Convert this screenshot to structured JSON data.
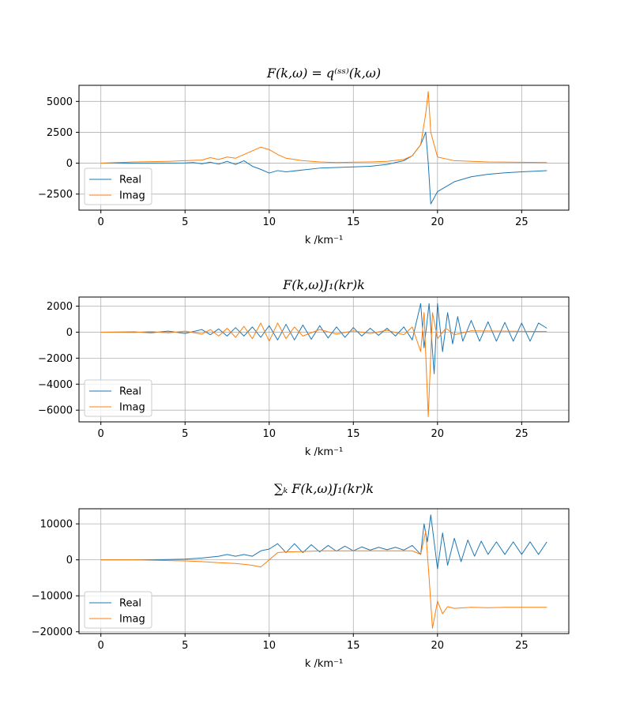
{
  "figure": {
    "width": 800,
    "height": 900
  },
  "chart_data": [
    {
      "type": "line",
      "title": "F(k,ω) = q⁽ˢˢ⁾(k,ω)",
      "xlabel": "k /km⁻¹",
      "ylabel": "",
      "xlim": [
        -1.3,
        27.8
      ],
      "ylim": [
        -3800,
        6300
      ],
      "xticks": [
        0,
        5,
        10,
        15,
        20,
        25
      ],
      "yticks": [
        -2500,
        0,
        2500,
        5000
      ],
      "grid": true,
      "legend": {
        "placement": "lower-left",
        "entries": [
          "Real",
          "Imag"
        ]
      },
      "series": [
        {
          "name": "Real",
          "color": "#1f77b4",
          "points": [
            [
              0,
              0
            ],
            [
              2,
              5
            ],
            [
              4,
              10
            ],
            [
              5,
              20
            ],
            [
              5.5,
              50
            ],
            [
              6,
              -50
            ],
            [
              6.5,
              80
            ],
            [
              7,
              -80
            ],
            [
              7.5,
              150
            ],
            [
              8,
              -100
            ],
            [
              8.5,
              200
            ],
            [
              9,
              -250
            ],
            [
              9.5,
              -500
            ],
            [
              10,
              -800
            ],
            [
              10.5,
              -600
            ],
            [
              11,
              -700
            ],
            [
              12,
              -550
            ],
            [
              13,
              -400
            ],
            [
              14,
              -350
            ],
            [
              15,
              -300
            ],
            [
              16,
              -250
            ],
            [
              17,
              -100
            ],
            [
              18,
              200
            ],
            [
              18.5,
              600
            ],
            [
              19,
              1500
            ],
            [
              19.3,
              2500
            ],
            [
              19.45,
              0
            ],
            [
              19.6,
              -3300
            ],
            [
              20,
              -2300
            ],
            [
              21,
              -1500
            ],
            [
              22,
              -1100
            ],
            [
              23,
              -900
            ],
            [
              24,
              -780
            ],
            [
              25,
              -700
            ],
            [
              26.5,
              -600
            ]
          ]
        },
        {
          "name": "Imag",
          "color": "#ff7f0e",
          "points": [
            [
              0,
              0
            ],
            [
              2,
              100
            ],
            [
              4,
              150
            ],
            [
              5,
              200
            ],
            [
              6,
              250
            ],
            [
              6.5,
              450
            ],
            [
              7,
              300
            ],
            [
              7.5,
              500
            ],
            [
              8,
              400
            ],
            [
              8.5,
              700
            ],
            [
              9,
              1000
            ],
            [
              9.5,
              1300
            ],
            [
              10,
              1100
            ],
            [
              10.5,
              700
            ],
            [
              11,
              400
            ],
            [
              12,
              200
            ],
            [
              13,
              100
            ],
            [
              14,
              50
            ],
            [
              15,
              80
            ],
            [
              16,
              100
            ],
            [
              17,
              150
            ],
            [
              18,
              300
            ],
            [
              18.5,
              600
            ],
            [
              19,
              1500
            ],
            [
              19.3,
              4000
            ],
            [
              19.45,
              5800
            ],
            [
              19.6,
              2500
            ],
            [
              20,
              500
            ],
            [
              21,
              200
            ],
            [
              23,
              100
            ],
            [
              26.5,
              50
            ]
          ]
        }
      ]
    },
    {
      "type": "line",
      "title": "F(k,ω)J₁(kr)k",
      "xlabel": "k /km⁻¹",
      "ylabel": "",
      "xlim": [
        -1.3,
        27.8
      ],
      "ylim": [
        -6900,
        2700
      ],
      "xticks": [
        0,
        5,
        10,
        15,
        20,
        25
      ],
      "yticks": [
        -6000,
        -4000,
        -2000,
        0,
        2000
      ],
      "grid": true,
      "legend": {
        "placement": "lower-left",
        "entries": [
          "Real",
          "Imag"
        ]
      },
      "series": [
        {
          "name": "Real",
          "color": "#1f77b4",
          "points": [
            [
              0,
              0
            ],
            [
              2,
              20
            ],
            [
              3,
              -50
            ],
            [
              4,
              80
            ],
            [
              5,
              -100
            ],
            [
              6,
              200
            ],
            [
              6.5,
              -200
            ],
            [
              7,
              250
            ],
            [
              7.5,
              -300
            ],
            [
              8,
              350
            ],
            [
              8.5,
              -300
            ],
            [
              9,
              400
            ],
            [
              9.5,
              -400
            ],
            [
              10,
              500
            ],
            [
              10.5,
              -600
            ],
            [
              11,
              600
            ],
            [
              11.5,
              -600
            ],
            [
              12,
              550
            ],
            [
              12.5,
              -550
            ],
            [
              13,
              500
            ],
            [
              13.5,
              -450
            ],
            [
              14,
              400
            ],
            [
              14.5,
              -400
            ],
            [
              15,
              350
            ],
            [
              15.5,
              -300
            ],
            [
              16,
              300
            ],
            [
              16.5,
              -250
            ],
            [
              17,
              300
            ],
            [
              17.5,
              -300
            ],
            [
              18,
              400
            ],
            [
              18.5,
              -600
            ],
            [
              19,
              2200
            ],
            [
              19.2,
              -1200
            ],
            [
              19.5,
              2200
            ],
            [
              19.8,
              -3200
            ],
            [
              20,
              2200
            ],
            [
              20.3,
              -1500
            ],
            [
              20.6,
              1500
            ],
            [
              20.9,
              -900
            ],
            [
              21.2,
              1200
            ],
            [
              21.5,
              -700
            ],
            [
              22,
              900
            ],
            [
              22.5,
              -700
            ],
            [
              23,
              800
            ],
            [
              23.5,
              -700
            ],
            [
              24,
              750
            ],
            [
              24.5,
              -700
            ],
            [
              25,
              700
            ],
            [
              25.5,
              -700
            ],
            [
              26,
              700
            ],
            [
              26.5,
              300
            ]
          ]
        },
        {
          "name": "Imag",
          "color": "#ff7f0e",
          "points": [
            [
              0,
              0
            ],
            [
              2,
              -20
            ],
            [
              3,
              40
            ],
            [
              4,
              -60
            ],
            [
              5,
              80
            ],
            [
              6,
              -150
            ],
            [
              6.5,
              200
            ],
            [
              7,
              -300
            ],
            [
              7.5,
              300
            ],
            [
              8,
              -400
            ],
            [
              8.5,
              450
            ],
            [
              9,
              -500
            ],
            [
              9.5,
              700
            ],
            [
              10,
              -700
            ],
            [
              10.5,
              700
            ],
            [
              11,
              -500
            ],
            [
              11.5,
              400
            ],
            [
              12,
              -300
            ],
            [
              13,
              200
            ],
            [
              14,
              -150
            ],
            [
              15,
              100
            ],
            [
              16,
              -100
            ],
            [
              17,
              150
            ],
            [
              18,
              -200
            ],
            [
              18.5,
              400
            ],
            [
              19,
              -1500
            ],
            [
              19.2,
              1500
            ],
            [
              19.45,
              -6500
            ],
            [
              19.7,
              1500
            ],
            [
              20,
              -500
            ],
            [
              20.5,
              300
            ],
            [
              21,
              -200
            ],
            [
              22,
              100
            ],
            [
              26.5,
              50
            ]
          ]
        }
      ]
    },
    {
      "type": "line",
      "title": "∑ₖ F(k,ω)J₁(kr)k",
      "xlabel": "k /km⁻¹",
      "ylabel": "",
      "xlim": [
        -1.3,
        27.8
      ],
      "ylim": [
        -20500,
        14200
      ],
      "xticks": [
        0,
        5,
        10,
        15,
        20,
        25
      ],
      "yticks": [
        -20000,
        -10000,
        0,
        10000
      ],
      "grid": true,
      "legend": {
        "placement": "lower-left",
        "entries": [
          "Real",
          "Imag"
        ]
      },
      "series": [
        {
          "name": "Real",
          "color": "#1f77b4",
          "points": [
            [
              0,
              0
            ],
            [
              2,
              0
            ],
            [
              4,
              100
            ],
            [
              5,
              200
            ],
            [
              6,
              500
            ],
            [
              7,
              1000
            ],
            [
              7.5,
              1500
            ],
            [
              8,
              1000
            ],
            [
              8.5,
              1500
            ],
            [
              9,
              1000
            ],
            [
              9.5,
              2500
            ],
            [
              10,
              3000
            ],
            [
              10.5,
              4500
            ],
            [
              11,
              2000
            ],
            [
              11.5,
              4500
            ],
            [
              12,
              2000
            ],
            [
              12.5,
              4200
            ],
            [
              13,
              2200
            ],
            [
              13.5,
              4000
            ],
            [
              14,
              2400
            ],
            [
              14.5,
              3800
            ],
            [
              15,
              2500
            ],
            [
              15.5,
              3600
            ],
            [
              16,
              2700
            ],
            [
              16.5,
              3500
            ],
            [
              17,
              2800
            ],
            [
              17.5,
              3500
            ],
            [
              18,
              2700
            ],
            [
              18.5,
              4000
            ],
            [
              19,
              1500
            ],
            [
              19.2,
              10000
            ],
            [
              19.4,
              5000
            ],
            [
              19.6,
              12500
            ],
            [
              19.8,
              5000
            ],
            [
              20,
              -2500
            ],
            [
              20.3,
              7500
            ],
            [
              20.6,
              -1500
            ],
            [
              21,
              6000
            ],
            [
              21.4,
              -500
            ],
            [
              21.8,
              5500
            ],
            [
              22.2,
              1000
            ],
            [
              22.6,
              5200
            ],
            [
              23,
              1500
            ],
            [
              23.5,
              5000
            ],
            [
              24,
              1500
            ],
            [
              24.5,
              5000
            ],
            [
              25,
              1500
            ],
            [
              25.5,
              5000
            ],
            [
              26,
              1500
            ],
            [
              26.5,
              5000
            ]
          ]
        },
        {
          "name": "Imag",
          "color": "#ff7f0e",
          "points": [
            [
              0,
              0
            ],
            [
              2,
              0
            ],
            [
              4,
              -200
            ],
            [
              5,
              -300
            ],
            [
              6,
              -500
            ],
            [
              7,
              -800
            ],
            [
              8,
              -1000
            ],
            [
              9,
              -1500
            ],
            [
              9.5,
              -2000
            ],
            [
              10,
              0
            ],
            [
              10.5,
              2000
            ],
            [
              11,
              2200
            ],
            [
              12,
              2300
            ],
            [
              13,
              2500
            ],
            [
              14,
              2500
            ],
            [
              15,
              2500
            ],
            [
              16,
              2500
            ],
            [
              17,
              2500
            ],
            [
              18,
              2500
            ],
            [
              18.5,
              2500
            ],
            [
              19,
              1500
            ],
            [
              19.3,
              8000
            ],
            [
              19.5,
              -5000
            ],
            [
              19.7,
              -19000
            ],
            [
              20,
              -11500
            ],
            [
              20.3,
              -15000
            ],
            [
              20.6,
              -13000
            ],
            [
              21,
              -13500
            ],
            [
              22,
              -13200
            ],
            [
              23,
              -13300
            ],
            [
              24,
              -13200
            ],
            [
              25,
              -13200
            ],
            [
              26.5,
              -13200
            ]
          ]
        }
      ]
    }
  ]
}
